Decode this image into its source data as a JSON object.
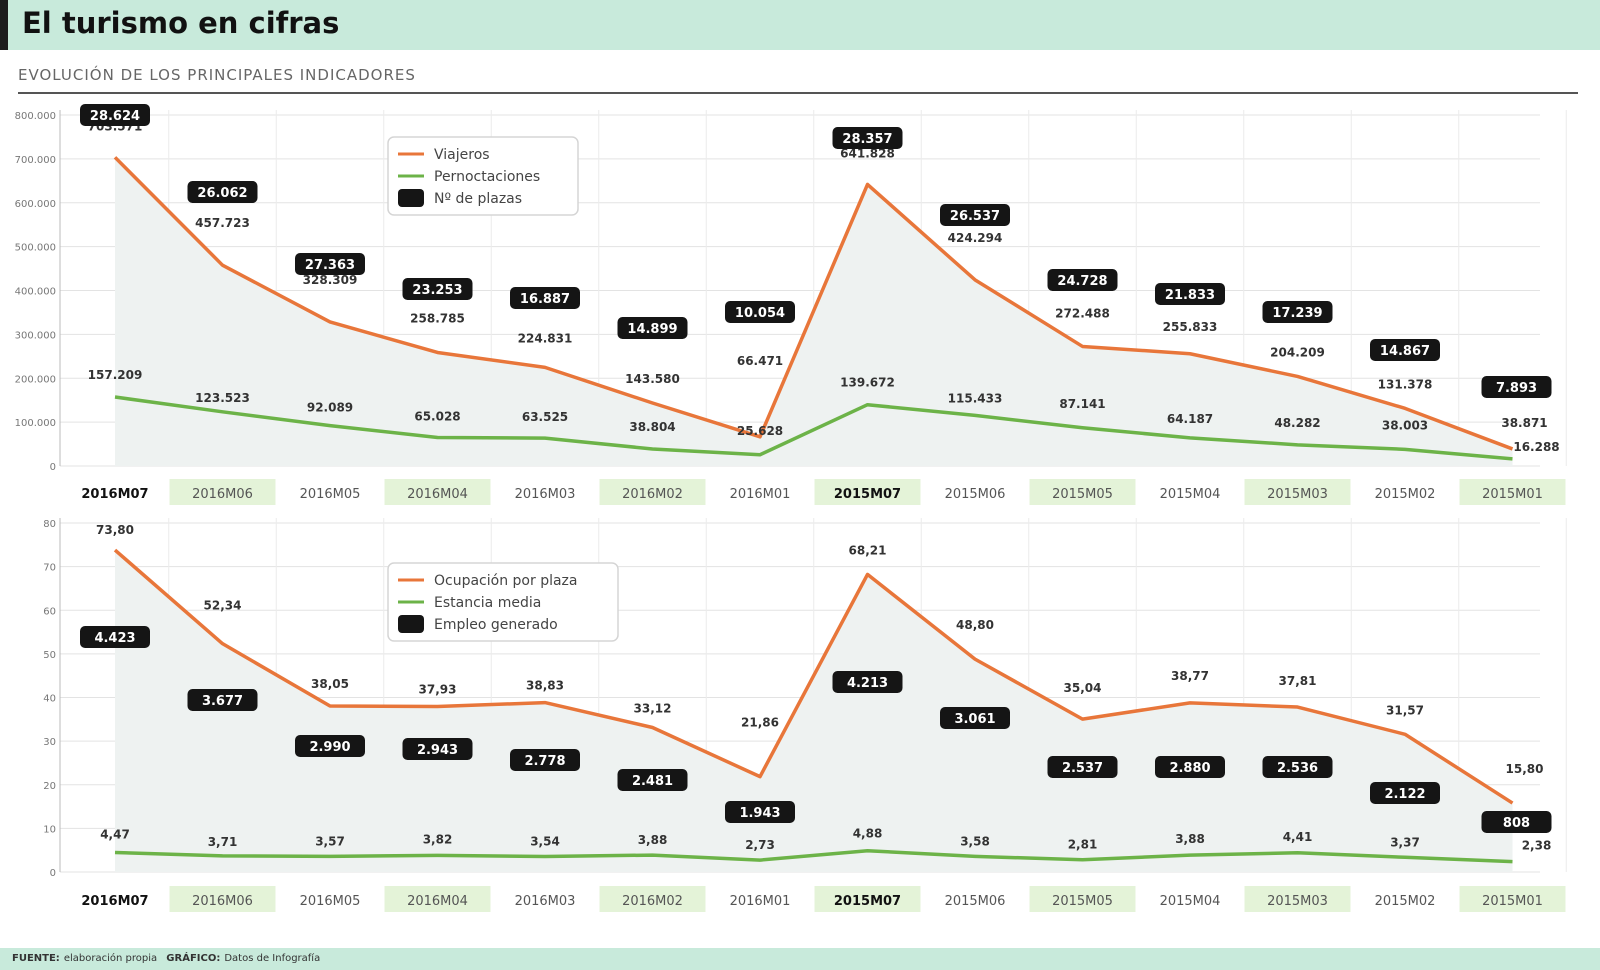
{
  "header": {
    "title": "El turismo en cifras"
  },
  "subtitle": "EVOLUCIÓN DE LOS PRINCIPALES INDICADORES",
  "footer": {
    "source_label": "FUENTE:",
    "source_text": "elaboración propia",
    "graphic_label": "GRÁFICO:",
    "graphic_text": "Datos de Infografía"
  },
  "colors": {
    "orange": "#e8763a",
    "green": "#6cb348",
    "badge": "#151515",
    "area": "#eef2f1",
    "hl": "#e4f3d8"
  },
  "chart_data": [
    {
      "type": "line",
      "categories": [
        "2016M07",
        "2016M06",
        "2016M05",
        "2016M04",
        "2016M03",
        "2016M02",
        "2016M01",
        "2015M07",
        "2015M06",
        "2015M05",
        "2015M04",
        "2015M03",
        "2015M02",
        "2015M01"
      ],
      "ylim": [
        0,
        800000
      ],
      "yticks": [
        0,
        100000,
        200000,
        300000,
        400000,
        500000,
        600000,
        700000,
        800000
      ],
      "ytick_labels": [
        "0",
        "100.000",
        "200.000",
        "300.000",
        "400.000",
        "500.000",
        "600.000",
        "700.000",
        "800.000"
      ],
      "series": [
        {
          "name": "Viajeros",
          "values": [
            703571,
            457723,
            328309,
            258785,
            224831,
            143580,
            66471,
            641828,
            424294,
            272488,
            255833,
            204209,
            131378,
            38871
          ],
          "labels": [
            "703.571",
            "457.723",
            "328.309",
            "258.785",
            "224.831",
            "143.580",
            "66.471",
            "641.828",
            "424.294",
            "272.488",
            "255.833",
            "204.209",
            "131.378",
            "38.871"
          ]
        },
        {
          "name": "Pernoctaciones",
          "values": [
            157209,
            123523,
            92089,
            65028,
            63525,
            38804,
            25628,
            139672,
            115433,
            87141,
            64187,
            48282,
            38003,
            16288
          ],
          "labels": [
            "157.209",
            "123.523",
            "92.089",
            "65.028",
            "63.525",
            "38.804",
            "25.628",
            "139.672",
            "115.433",
            "87.141",
            "64.187",
            "48.282",
            "38.003",
            "16.288"
          ]
        },
        {
          "name": "Nº de plazas",
          "values": [
            28624,
            26062,
            27363,
            23253,
            16887,
            14899,
            10054,
            28357,
            26537,
            24728,
            21833,
            17239,
            14867,
            7893
          ],
          "labels": [
            "28.624",
            "26.062",
            "27.363",
            "23.253",
            "16.887",
            "14.899",
            "10.054",
            "28.357",
            "26.537",
            "24.728",
            "21.833",
            "17.239",
            "14.867",
            "7.893"
          ]
        }
      ]
    },
    {
      "type": "line",
      "categories": [
        "2016M07",
        "2016M06",
        "2016M05",
        "2016M04",
        "2016M03",
        "2016M02",
        "2016M01",
        "2015M07",
        "2015M06",
        "2015M05",
        "2015M04",
        "2015M03",
        "2015M02",
        "2015M01"
      ],
      "ylim": [
        0,
        80
      ],
      "yticks": [
        0,
        10,
        20,
        30,
        40,
        50,
        60,
        70,
        80
      ],
      "ytick_labels": [
        "0",
        "10",
        "20",
        "30",
        "40",
        "50",
        "60",
        "70",
        "80"
      ],
      "series": [
        {
          "name": "Ocupación por plaza",
          "values": [
            73.8,
            52.34,
            38.05,
            37.93,
            38.83,
            33.12,
            21.86,
            68.21,
            48.8,
            35.04,
            38.77,
            37.81,
            31.57,
            15.8
          ],
          "labels": [
            "73,80",
            "52,34",
            "38,05",
            "37,93",
            "38,83",
            "33,12",
            "21,86",
            "68,21",
            "48,80",
            "35,04",
            "38,77",
            "37,81",
            "31,57",
            "15,80"
          ]
        },
        {
          "name": "Estancia media",
          "values": [
            4.47,
            3.71,
            3.57,
            3.82,
            3.54,
            3.88,
            2.73,
            4.88,
            3.58,
            2.81,
            3.88,
            4.41,
            3.37,
            2.38
          ],
          "labels": [
            "4,47",
            "3,71",
            "3,57",
            "3,82",
            "3,54",
            "3,88",
            "2,73",
            "4,88",
            "3,58",
            "2,81",
            "3,88",
            "4,41",
            "3,37",
            "2,38"
          ]
        },
        {
          "name": "Empleo generado",
          "values": [
            4423,
            3677,
            2990,
            2943,
            2778,
            2481,
            1943,
            4213,
            3061,
            2537,
            2880,
            2536,
            2122,
            808
          ],
          "labels": [
            "4.423",
            "3.677",
            "2.990",
            "2.943",
            "2.778",
            "2.481",
            "1.943",
            "4.213",
            "3.061",
            "2.537",
            "2.880",
            "2.536",
            "2.122",
            "808"
          ]
        }
      ]
    }
  ]
}
